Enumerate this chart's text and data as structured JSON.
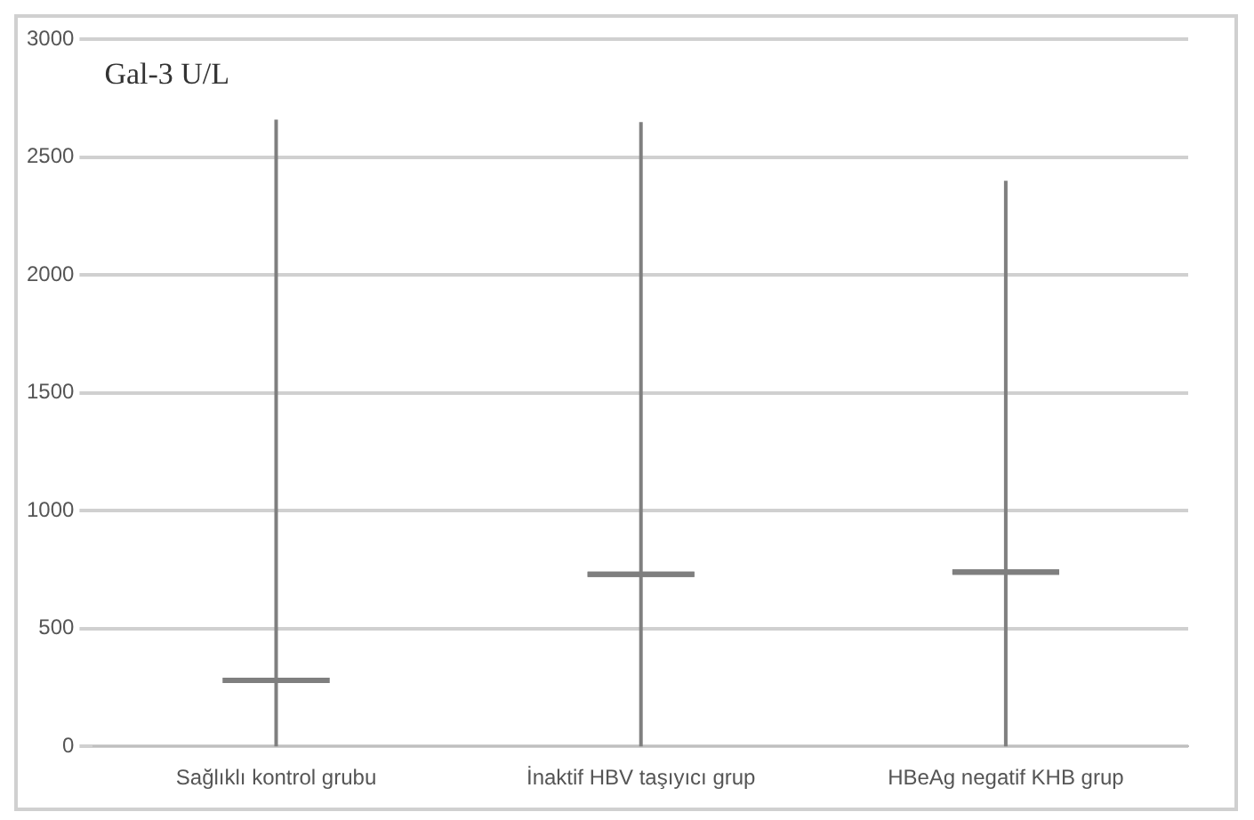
{
  "chart_data": {
    "type": "box",
    "ylabel": "Gal-3 U/L",
    "categories": [
      "Sağlıklı kontrol grubu",
      "İnaktif HBV taşıyıcı grup",
      "HBeAg negatif KHB grup"
    ],
    "color": "#7f7f7f",
    "boxes": [
      {
        "low": 0,
        "q1": 280,
        "median": 280,
        "q3": 280,
        "high": 2660
      },
      {
        "low": 0,
        "q1": 730,
        "median": 730,
        "q3": 730,
        "high": 2650
      },
      {
        "low": 0,
        "q1": 740,
        "median": 740,
        "q3": 740,
        "high": 2400
      }
    ],
    "ylim": [
      0,
      3000
    ],
    "yticks": [
      0,
      500,
      1000,
      1500,
      2000,
      2500,
      3000
    ],
    "grid": "y"
  }
}
